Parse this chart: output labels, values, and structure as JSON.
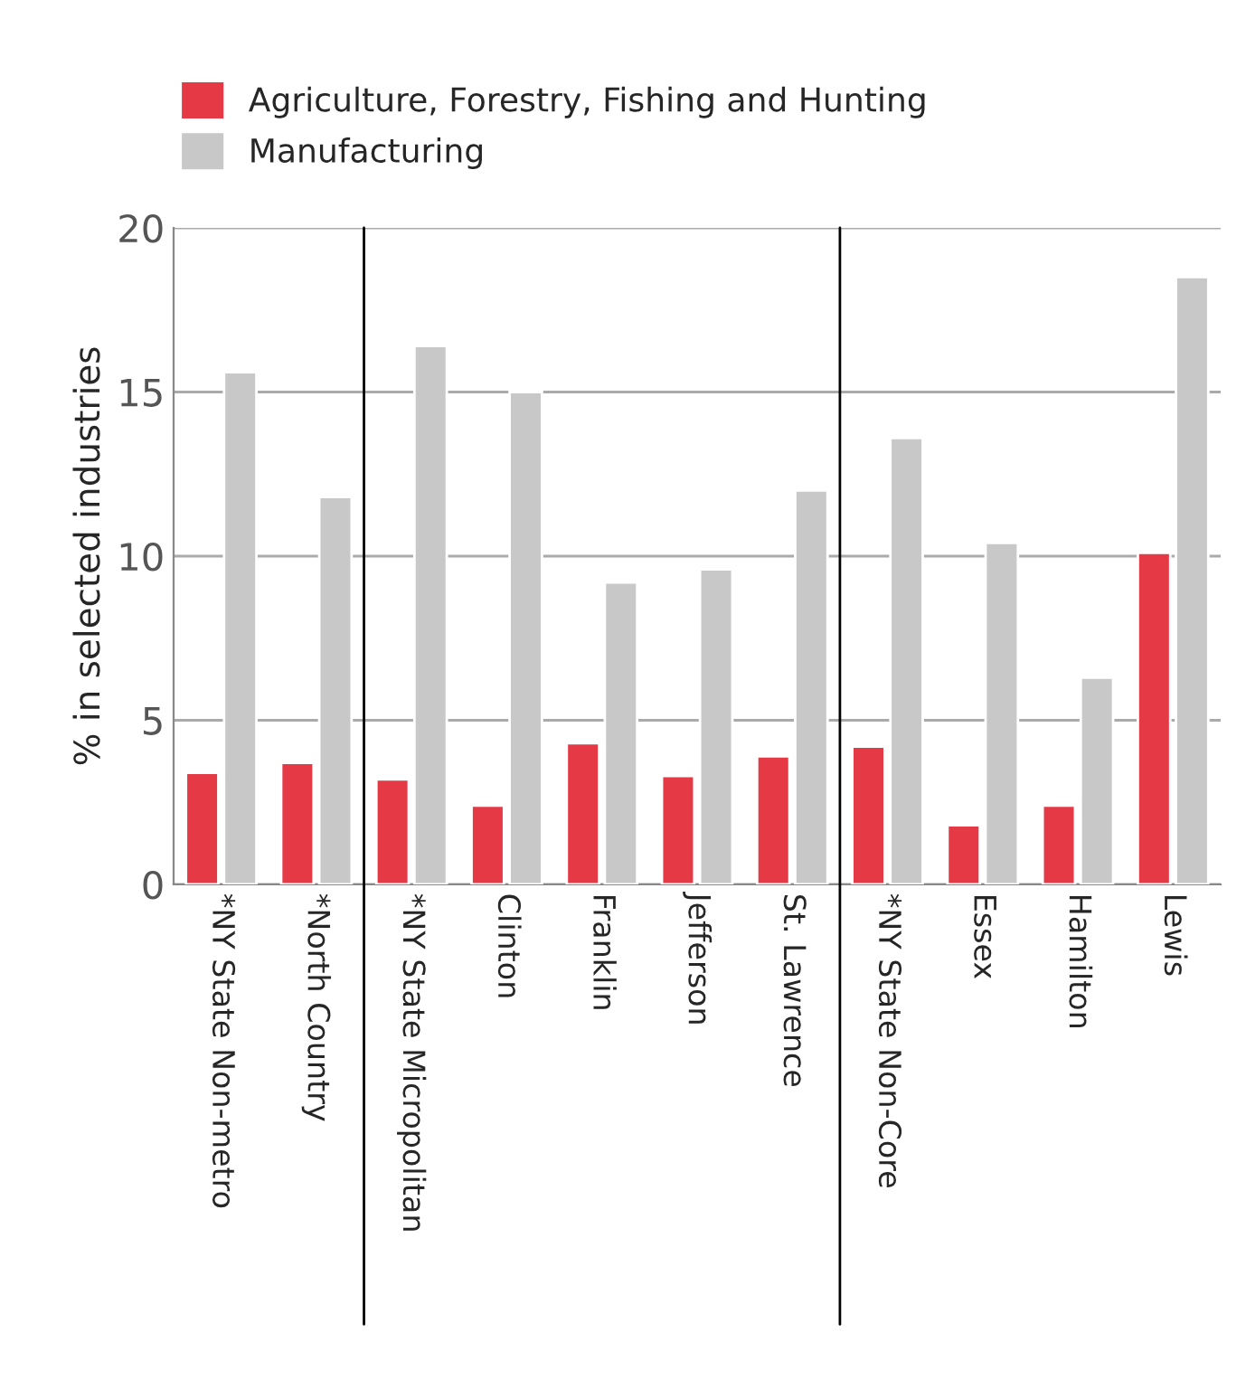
{
  "chart_data": {
    "type": "bar",
    "ylabel": "% in selected industries",
    "categories": [
      "*NY State Non-metro",
      "*North Country",
      "*NY State Micropolitan",
      "Clinton",
      "Franklin",
      "Jefferson",
      "St. Lawrence",
      "*NY State Non-Core",
      "Essex",
      "Hamilton",
      "Lewis"
    ],
    "series": [
      {
        "name": "Agriculture, Forestry, Fishing and Hunting",
        "color": "#e63946",
        "values": [
          3.4,
          3.7,
          3.2,
          2.4,
          4.3,
          3.3,
          3.9,
          4.2,
          1.8,
          2.4,
          10.1
        ]
      },
      {
        "name": "Manufacturing",
        "color": "#c8c8c9",
        "values": [
          15.6,
          11.8,
          16.4,
          15.0,
          9.2,
          9.6,
          12.0,
          13.6,
          10.4,
          6.3,
          18.5
        ]
      }
    ],
    "ylim": [
      0,
      20
    ],
    "yticks": [
      0,
      5,
      10,
      15,
      20
    ],
    "grid": "y",
    "legend": "top left"
  }
}
